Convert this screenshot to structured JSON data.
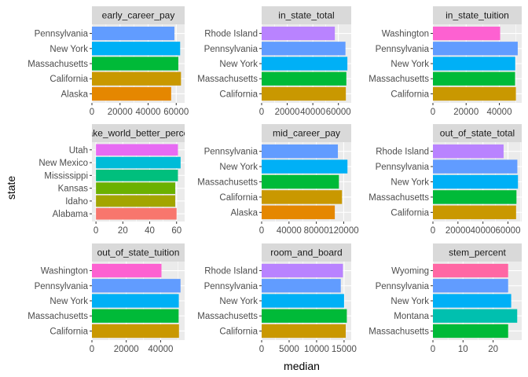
{
  "axes": {
    "xlabel": "median",
    "ylabel": "state"
  },
  "state_colors": {
    "Alabama": "#F8766D",
    "Alaska": "#E58700",
    "California": "#C99800",
    "Idaho": "#A3A500",
    "Kansas": "#6BB100",
    "Massachusetts": "#00BA38",
    "Mississippi": "#00BF7D",
    "Montana": "#00C0AF",
    "New Mexico": "#00BCD8",
    "New York": "#00B0F6",
    "Pennsylvania": "#619CFF",
    "Rhode Island": "#B983FF",
    "Utah": "#E76BF3",
    "Washington": "#FD61D1",
    "Wyoming": "#FF67A4"
  },
  "chart_data": [
    {
      "type": "bar",
      "orientation": "horizontal",
      "title": "early_career_pay",
      "categories": [
        "Alaska",
        "California",
        "Massachusetts",
        "New York",
        "Pennsylvania"
      ],
      "values": [
        56400,
        63400,
        61500,
        62800,
        58700
      ],
      "xlim": [
        0,
        66000
      ],
      "xticks": [
        0,
        20000,
        40000,
        60000
      ]
    },
    {
      "type": "bar",
      "orientation": "horizontal",
      "title": "in_state_total",
      "categories": [
        "California",
        "Massachusetts",
        "New York",
        "Pennsylvania",
        "Rhode Island"
      ],
      "values": [
        65800,
        66200,
        67000,
        65500,
        57200
      ],
      "xlim": [
        0,
        70000
      ],
      "xticks": [
        0,
        20000,
        40000,
        60000
      ]
    },
    {
      "type": "bar",
      "orientation": "horizontal",
      "title": "in_state_tuition",
      "categories": [
        "California",
        "Massachusetts",
        "New York",
        "Pennsylvania",
        "Washington"
      ],
      "values": [
        50000,
        49500,
        49600,
        51100,
        40500
      ],
      "xlim": [
        0,
        53500
      ],
      "xticks": [
        0,
        20000,
        40000
      ]
    },
    {
      "type": "bar",
      "orientation": "horizontal",
      "title": "make_world_better_percent",
      "categories": [
        "Alabama",
        "Idaho",
        "Kansas",
        "Mississippi",
        "New Mexico",
        "Utah"
      ],
      "values": [
        60,
        59,
        59,
        61,
        63,
        61
      ],
      "xlim": [
        -3,
        66
      ],
      "xticks": [
        0,
        20,
        40,
        60
      ]
    },
    {
      "type": "bar",
      "orientation": "horizontal",
      "title": "mid_career_pay",
      "categories": [
        "Alaska",
        "California",
        "Massachusetts",
        "New York",
        "Pennsylvania"
      ],
      "values": [
        107000,
        117500,
        113000,
        125500,
        111500
      ],
      "xlim": [
        0,
        131000
      ],
      "xticks": [
        0,
        40000,
        80000,
        120000
      ]
    },
    {
      "type": "bar",
      "orientation": "horizontal",
      "title": "out_of_state_total",
      "categories": [
        "California",
        "Massachusetts",
        "New York",
        "Pennsylvania",
        "Rhode Island"
      ],
      "values": [
        66500,
        66800,
        68000,
        67500,
        56500
      ],
      "xlim": [
        0,
        71000
      ],
      "xticks": [
        0,
        20000,
        40000,
        60000
      ]
    },
    {
      "type": "bar",
      "orientation": "horizontal",
      "title": "out_of_state_tuition",
      "categories": [
        "California",
        "Massachusetts",
        "New York",
        "Pennsylvania",
        "Washington"
      ],
      "values": [
        50700,
        50500,
        50600,
        51600,
        40500
      ],
      "xlim": [
        0,
        54000
      ],
      "xticks": [
        0,
        20000,
        40000
      ]
    },
    {
      "type": "bar",
      "orientation": "horizontal",
      "title": "room_and_board",
      "categories": [
        "California",
        "Massachusetts",
        "New York",
        "Pennsylvania",
        "Rhode Island"
      ],
      "values": [
        15300,
        15500,
        15000,
        14400,
        14800
      ],
      "xlim": [
        0,
        16300
      ],
      "xticks": [
        0,
        5000,
        10000,
        15000
      ]
    },
    {
      "type": "bar",
      "orientation": "horizontal",
      "title": "stem_percent",
      "categories": [
        "Massachusetts",
        "Montana",
        "New York",
        "Pennsylvania",
        "Wyoming"
      ],
      "values": [
        25,
        28,
        26,
        25,
        25
      ],
      "xlim": [
        0,
        29.5
      ],
      "xticks": [
        0,
        10,
        20
      ]
    }
  ]
}
